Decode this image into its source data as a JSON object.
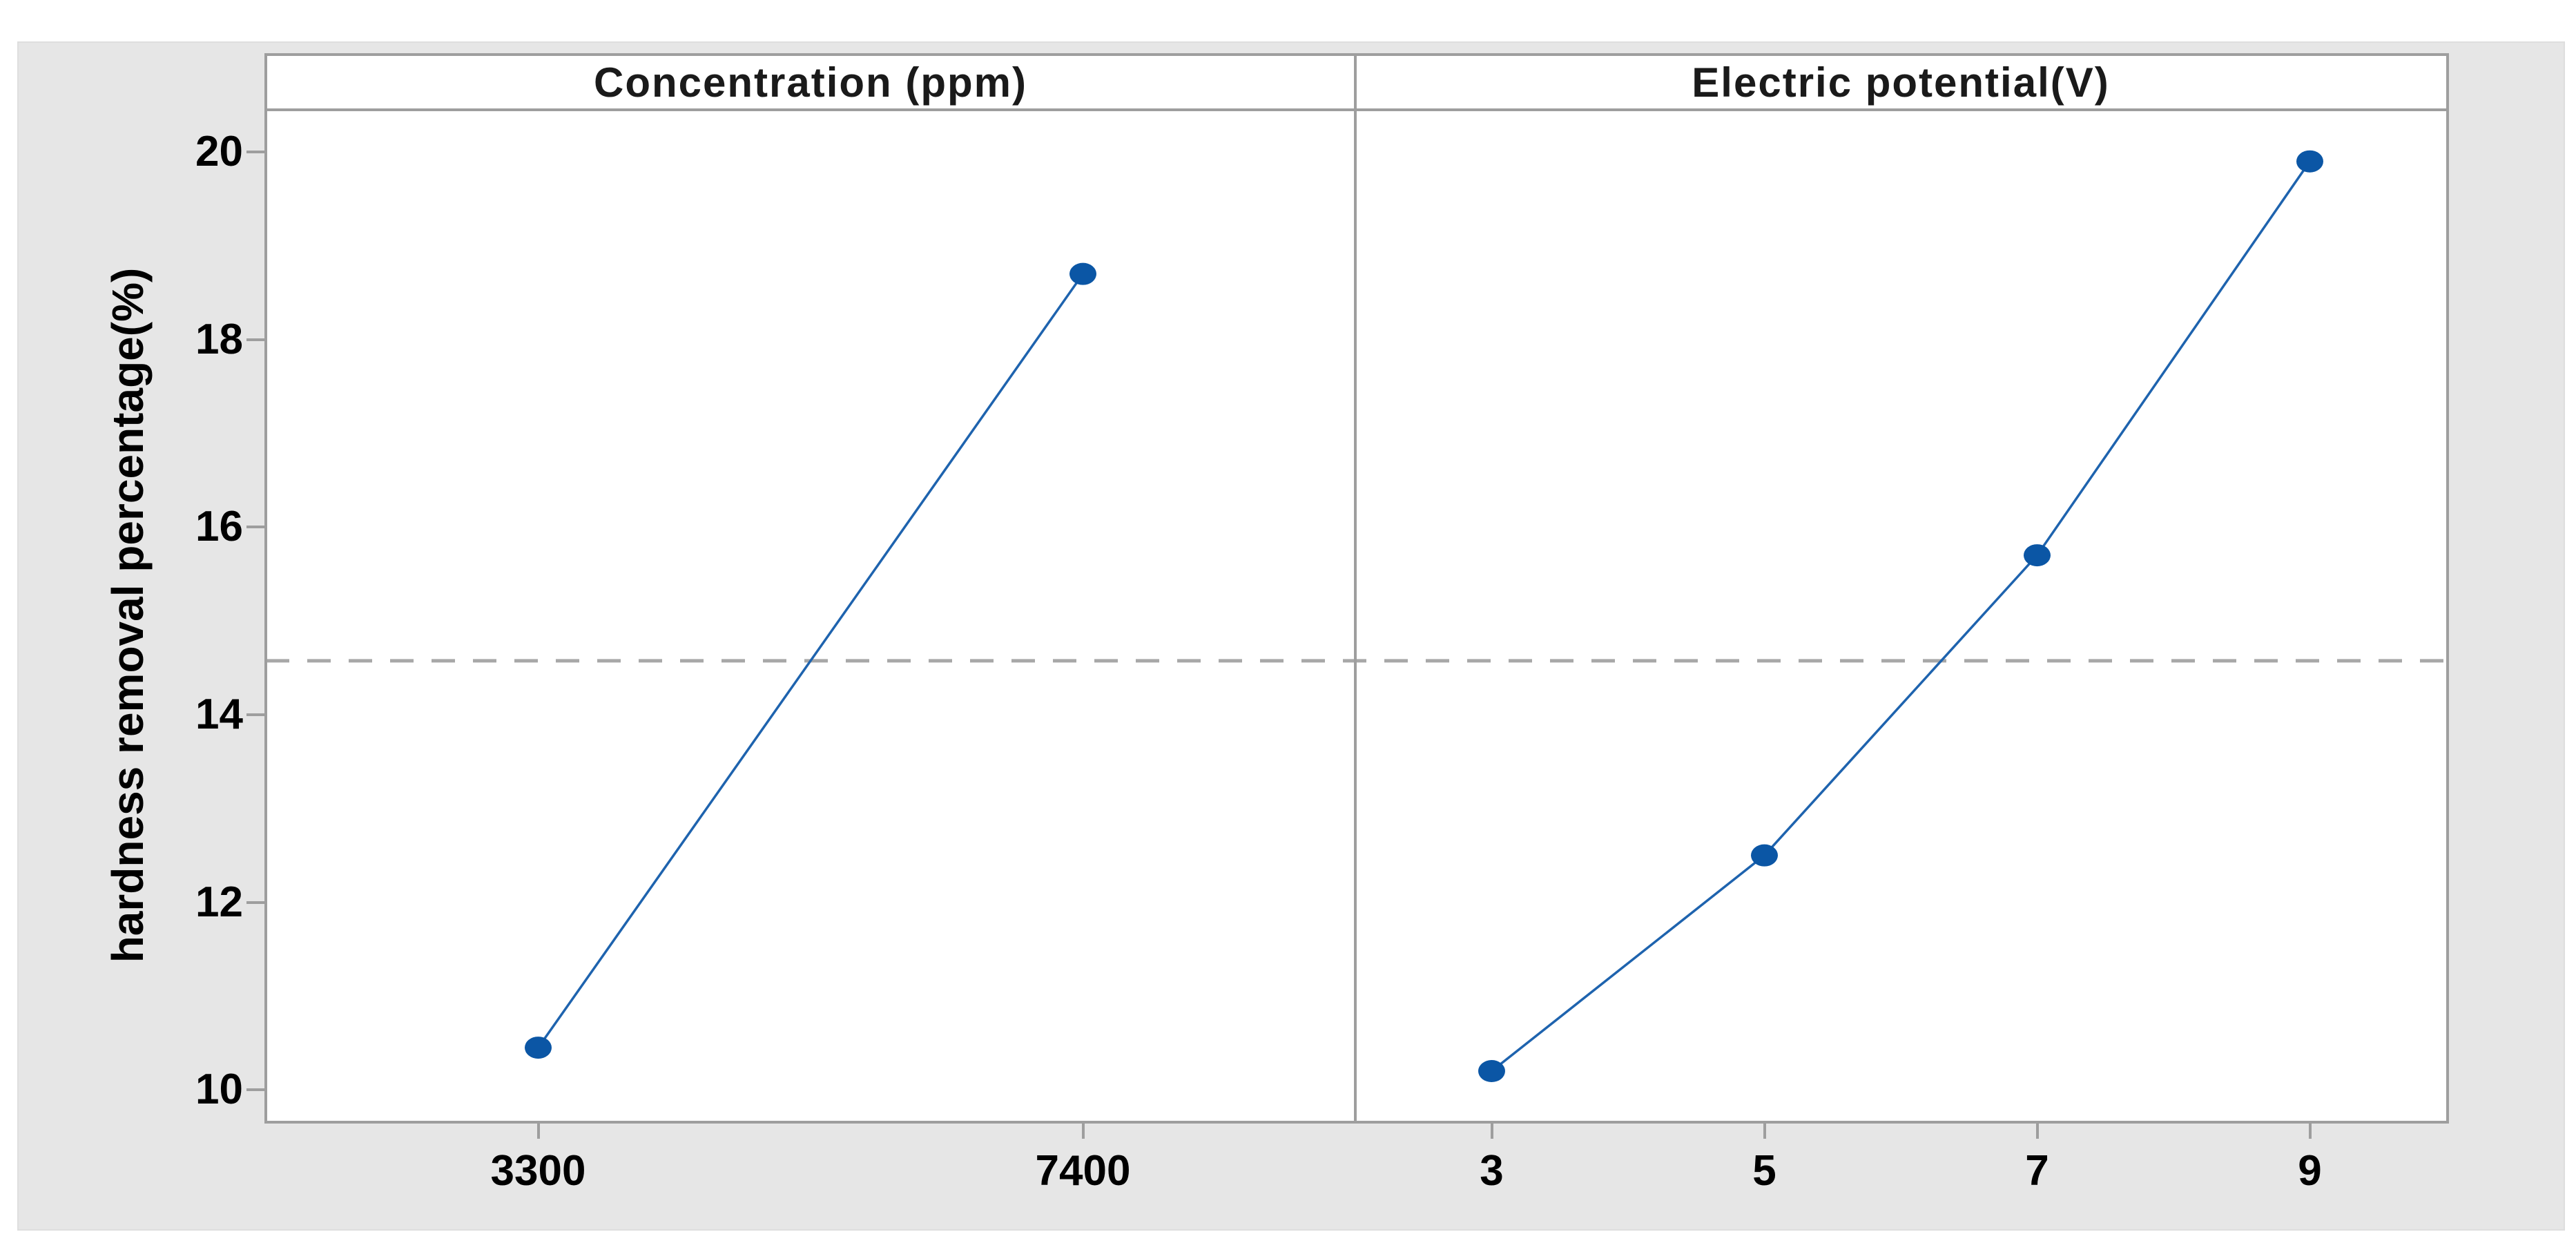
{
  "window": {
    "background": "#ffffff",
    "figure_background": "#e6e6e6"
  },
  "colors": {
    "plot_background": "#ffffff",
    "panel_border": "#9e9e9e",
    "tick_mark": "#9e9e9e",
    "text": "#000000",
    "series_line": "#1e63ae",
    "marker_fill": "#0b56a5",
    "mean_line": "#a8a8a8"
  },
  "chart_data": {
    "type": "line",
    "subtype": "main-effects-plot",
    "title": "",
    "ylabel": "hardness removal percentage(%)",
    "xlabel": "",
    "ylim": [
      9.67,
      20.45
    ],
    "yticks": [
      20,
      18,
      16,
      14,
      12,
      10
    ],
    "grid": false,
    "legend": "none",
    "mean_line": 14.575,
    "mean_line_style": "dashed",
    "panels": [
      {
        "title": "Concentration (ppm)",
        "categories": [
          "3300",
          "7400"
        ],
        "values": [
          10.45,
          18.7
        ]
      },
      {
        "title": "Electric potential(V)",
        "categories": [
          "3",
          "5",
          "7",
          "9"
        ],
        "values": [
          10.2,
          12.5,
          15.7,
          19.9
        ]
      }
    ]
  }
}
